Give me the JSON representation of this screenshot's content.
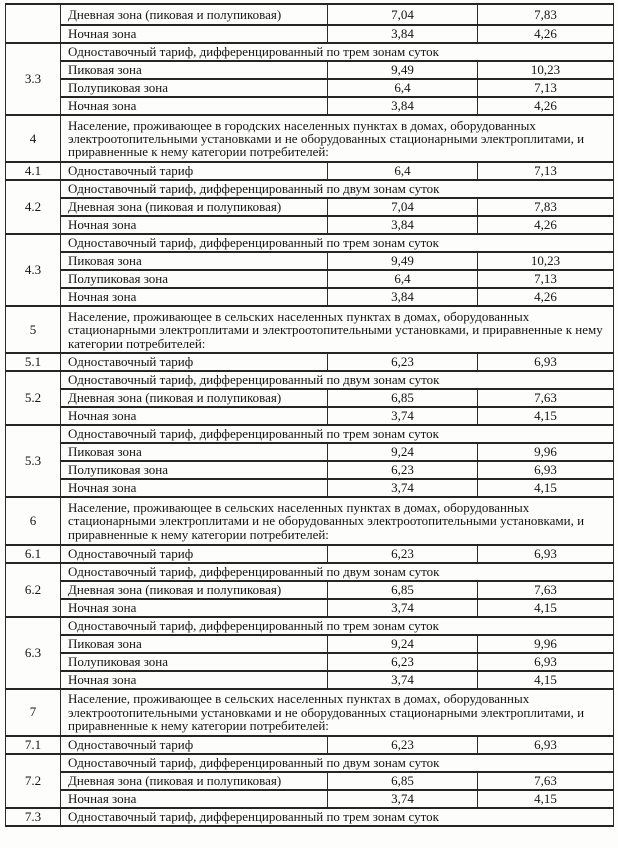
{
  "document": {
    "kind": "scanned tariff table page",
    "text_color": "#141414",
    "border_color": "#252525",
    "background": "#fdfdfc"
  },
  "sections": [
    {
      "num": "",
      "rows": [
        {
          "label": "Дневная зона (пиковая и полупиковая)",
          "v1": "7,04",
          "v2": "7,83"
        },
        {
          "label": "Ночная зона",
          "v1": "3,84",
          "v2": "4,26"
        }
      ]
    },
    {
      "num": "3.3",
      "subheader": "Одноставочный тариф, дифференцированный по трем зонам суток",
      "rows": [
        {
          "label": "Пиковая зона",
          "v1": "9,49",
          "v2": "10,23"
        },
        {
          "label": "Полупиковая зона",
          "v1": "6,4",
          "v2": "7,13"
        },
        {
          "label": "Ночная зона",
          "v1": "3,84",
          "v2": "4,26"
        }
      ]
    },
    {
      "num": "4",
      "header": "Население, проживающее в городских населенных пунктах в домах, оборудованных электроотопительными установками и не оборудованных стационарными электроплитами, и приравненные к нему категории потребителей:"
    },
    {
      "num": "4.1",
      "rows": [
        {
          "label": "Одноставочный тариф",
          "v1": "6,4",
          "v2": "7,13"
        }
      ]
    },
    {
      "num": "4.2",
      "subheader": "Одноставочный тариф, дифференцированный по двум зонам суток",
      "rows": [
        {
          "label": "Дневная зона (пиковая и полупиковая)",
          "v1": "7,04",
          "v2": "7,83"
        },
        {
          "label": "Ночная зона",
          "v1": "3,84",
          "v2": "4,26"
        }
      ]
    },
    {
      "num": "4.3",
      "subheader": "Одноставочный тариф, дифференцированный по трем зонам суток",
      "rows": [
        {
          "label": "Пиковая зона",
          "v1": "9,49",
          "v2": "10,23"
        },
        {
          "label": "Полупиковая зона",
          "v1": "6,4",
          "v2": "7,13"
        },
        {
          "label": "Ночная зона",
          "v1": "3,84",
          "v2": "4,26"
        }
      ]
    },
    {
      "num": "5",
      "header": "Население, проживающее в сельских населенных пунктах в домах, оборудованных стационарными электроплитами и электроотопительными установками, и приравненные к нему категории потребителей:"
    },
    {
      "num": "5.1",
      "rows": [
        {
          "label": "Одноставочный тариф",
          "v1": "6,23",
          "v2": "6,93"
        }
      ]
    },
    {
      "num": "5.2",
      "subheader": "Одноставочный тариф, дифференцированный по двум зонам суток",
      "rows": [
        {
          "label": "Дневная зона (пиковая и полупиковая)",
          "v1": "6,85",
          "v2": "7,63"
        },
        {
          "label": "Ночная зона",
          "v1": "3,74",
          "v2": "4,15"
        }
      ]
    },
    {
      "num": "5.3",
      "subheader": "Одноставочный тариф, дифференцированный по трем зонам суток",
      "rows": [
        {
          "label": "Пиковая зона",
          "v1": "9,24",
          "v2": "9,96"
        },
        {
          "label": "Полупиковая зона",
          "v1": "6,23",
          "v2": "6,93"
        },
        {
          "label": "Ночная зона",
          "v1": "3,74",
          "v2": "4,15"
        }
      ]
    },
    {
      "num": "6",
      "header": "Население, проживающее в сельских населенных пунктах в домах, оборудованных стационарными электроплитами и не оборудованных электроотопительными установками, и приравненные к нему категории потребителей:"
    },
    {
      "num": "6.1",
      "rows": [
        {
          "label": "Одноставочный тариф",
          "v1": "6,23",
          "v2": "6,93"
        }
      ]
    },
    {
      "num": "6.2",
      "subheader": "Одноставочный тариф, дифференцированный по двум зонам суток",
      "rows": [
        {
          "label": "Дневная зона (пиковая и полупиковая)",
          "v1": "6,85",
          "v2": "7,63"
        },
        {
          "label": "Ночная зона",
          "v1": "3,74",
          "v2": "4,15"
        }
      ]
    },
    {
      "num": "6.3",
      "subheader": "Одноставочный тариф, дифференцированный по трем зонам суток",
      "rows": [
        {
          "label": "Пиковая зона",
          "v1": "9,24",
          "v2": "9,96"
        },
        {
          "label": "Полупиковая зона",
          "v1": "6,23",
          "v2": "6,93"
        },
        {
          "label": "Ночная зона",
          "v1": "3,74",
          "v2": "4,15"
        }
      ]
    },
    {
      "num": "7",
      "header": "Население, проживающее в сельских населенных пунктах в домах, оборудованных электроотопительными установками и не оборудованных стационарными электроплитами, и приравненные к нему категории потребителей:"
    },
    {
      "num": "7.1",
      "rows": [
        {
          "label": "Одноставочный тариф",
          "v1": "6,23",
          "v2": "6,93"
        }
      ]
    },
    {
      "num": "7.2",
      "subheader": "Одноставочный тариф, дифференцированный по двум зонам суток",
      "rows": [
        {
          "label": "Дневная зона (пиковая и полупиковая)",
          "v1": "6,85",
          "v2": "7,63"
        },
        {
          "label": "Ночная зона",
          "v1": "3,74",
          "v2": "4,15"
        }
      ]
    },
    {
      "num": "7.3",
      "subheader": "Одноставочный тариф, дифференцированный по трем зонам суток"
    }
  ]
}
